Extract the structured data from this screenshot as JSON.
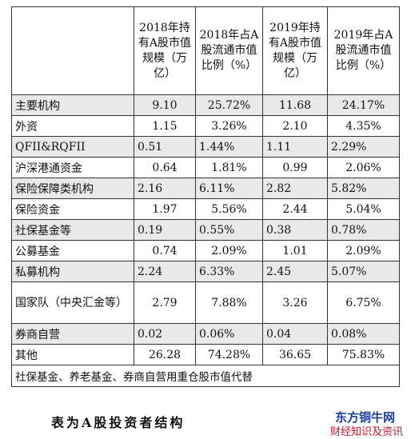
{
  "table": {
    "headers": [
      "",
      "2018年持有A股市值规模（万亿）",
      "2018年占A股流通市值比例（%）",
      "2019年持有A股市值规模（万亿）",
      "2019年占A股流通市值比例（%）"
    ],
    "rows": [
      {
        "label": "主要机构",
        "v": [
          "9.10",
          "25.72%",
          "11.68",
          "24.17%"
        ],
        "shaded": true
      },
      {
        "label": "外资",
        "v": [
          "1.15",
          "3.26%",
          "2.10",
          "4.35%"
        ],
        "shaded": false
      },
      {
        "label": "QFII&RQFII",
        "v": [
          "0.51",
          "1.44%",
          "1.11",
          "2.29%"
        ],
        "shaded": true
      },
      {
        "label": "沪深港通资金",
        "v": [
          "0.64",
          "1.81%",
          "0.99",
          "2.06%"
        ],
        "shaded": false
      },
      {
        "label": "保险保障类机构",
        "v": [
          "2.16",
          "6.11%",
          "2.82",
          "5.82%"
        ],
        "shaded": true
      },
      {
        "label": "保险资金",
        "v": [
          "1.97",
          "5.56%",
          "2.44",
          "5.04%"
        ],
        "shaded": false
      },
      {
        "label": "社保基金等",
        "v": [
          "0.19",
          "0.55%",
          "0.38",
          "0.78%"
        ],
        "shaded": true
      },
      {
        "label": "公募基金",
        "v": [
          "0.74",
          "2.09%",
          "1.01",
          "2.09%"
        ],
        "shaded": false
      },
      {
        "label": "私募机构",
        "v": [
          "2.24",
          "6.33%",
          "2.45",
          "5.07%"
        ],
        "shaded": true
      },
      {
        "label": "国家队（中央汇金等）",
        "v": [
          "2.79",
          "7.88%",
          "3.26",
          "6.75%"
        ],
        "shaded": false
      },
      {
        "label": "券商自营",
        "v": [
          "0.02",
          "0.06%",
          "0.04",
          "0.08%"
        ],
        "shaded": true
      },
      {
        "label": "其他",
        "v": [
          "26.28",
          "74.28%",
          "36.65",
          "75.83%"
        ],
        "shaded": false
      }
    ],
    "note": "社保基金、养老基金、券商自营用重仓股市值代替"
  },
  "caption": "表为A股投资者结构",
  "watermark": {
    "line1": "东方铜牛网",
    "line2": "财经知识及资讯"
  }
}
